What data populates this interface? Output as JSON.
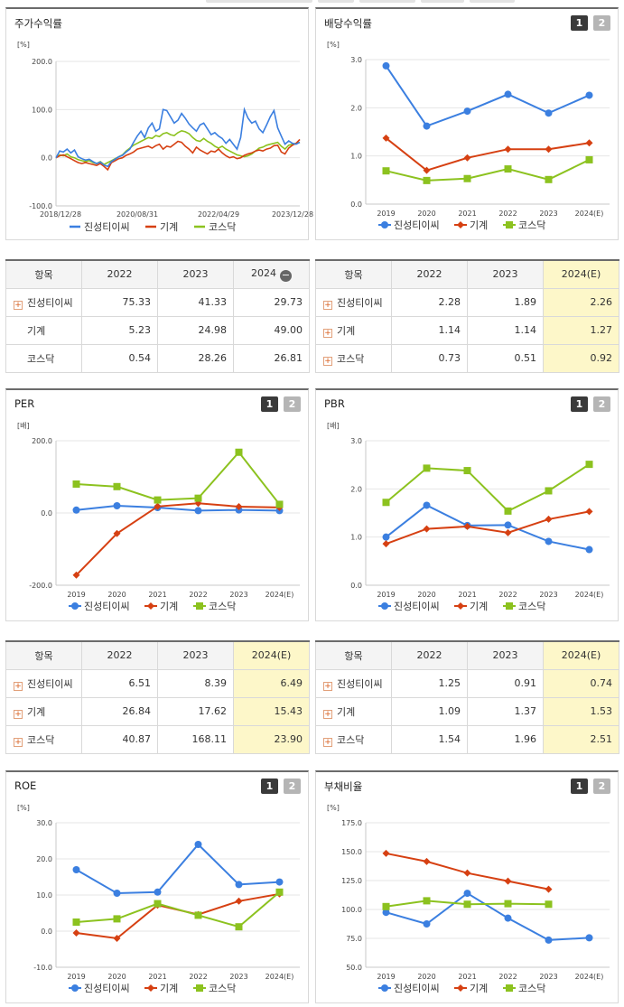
{
  "colors": {
    "series1": "#3b7fe0",
    "series2": "#d64012",
    "series3": "#8cc21f"
  },
  "legend": [
    "진성티이씨",
    "기계",
    "코스닥"
  ],
  "charts": {
    "price": {
      "title": "주가수익률",
      "unit": "[%]",
      "chart_data": {
        "type": "line",
        "title": "주가수익률",
        "ylabel": "[%]",
        "ylim": [
          -100,
          200
        ],
        "yticks": [
          "200.0",
          "100.0",
          "0.0",
          "-100.0"
        ],
        "xticks": [
          "2018/12/28",
          "2020/08/31",
          "2022/04/29",
          "2023/12/28"
        ],
        "x_start": "2018/12/28",
        "x_end": "2023/12/28",
        "series": [
          {
            "name": "진성티이씨",
            "values": [
              0,
              14,
              12,
              18,
              10,
              16,
              2,
              -2,
              -5,
              -3,
              -8,
              -12,
              -9,
              -15,
              -18,
              -8,
              -3,
              2,
              5,
              12,
              18,
              32,
              45,
              55,
              42,
              62,
              72,
              55,
              60,
              100,
              98,
              85,
              72,
              78,
              92,
              82,
              70,
              62,
              55,
              68,
              72,
              60,
              48,
              52,
              45,
              40,
              30,
              38,
              28,
              18,
              42,
              100,
              82,
              72,
              76,
              60,
              52,
              68,
              85,
              98,
              62,
              45,
              28,
              35,
              30,
              28,
              32
            ]
          },
          {
            "name": "기계",
            "values": [
              0,
              4,
              6,
              2,
              -2,
              -6,
              -10,
              -12,
              -10,
              -12,
              -14,
              -16,
              -12,
              -18,
              -25,
              -10,
              -6,
              -2,
              0,
              5,
              8,
              12,
              18,
              20,
              22,
              24,
              20,
              25,
              28,
              18,
              24,
              22,
              28,
              34,
              32,
              24,
              18,
              10,
              22,
              16,
              12,
              8,
              14,
              12,
              18,
              10,
              4,
              0,
              2,
              -2,
              0,
              5,
              8,
              10,
              14,
              16,
              14,
              18,
              20,
              25,
              26,
              12,
              8,
              20,
              26,
              30,
              38
            ]
          },
          {
            "name": "코스닥",
            "values": [
              0,
              6,
              4,
              8,
              2,
              0,
              -4,
              -6,
              -8,
              -6,
              -10,
              -12,
              -8,
              -14,
              -10,
              -6,
              -2,
              2,
              6,
              14,
              20,
              26,
              30,
              34,
              38,
              42,
              40,
              46,
              44,
              50,
              52,
              48,
              46,
              52,
              56,
              54,
              50,
              42,
              36,
              34,
              40,
              34,
              30,
              24,
              20,
              24,
              18,
              14,
              10,
              6,
              4,
              2,
              4,
              8,
              14,
              20,
              22,
              26,
              28,
              30,
              32,
              24,
              18,
              26,
              28,
              30,
              32
            ]
          }
        ]
      }
    },
    "dividend": {
      "title": "배당수익률",
      "unit": "[%]",
      "chart_data": {
        "type": "line",
        "title": "배당수익률",
        "ylabel": "[%]",
        "ylim": [
          0,
          3
        ],
        "yticks": [
          "3.0",
          "2.0",
          "1.0",
          "0.0"
        ],
        "categories": [
          "2019",
          "2020",
          "2021",
          "2022",
          "2023",
          "2024(E)"
        ],
        "series": [
          {
            "name": "진성티이씨",
            "values": [
              2.87,
              1.62,
              1.93,
              2.28,
              1.89,
              2.26
            ]
          },
          {
            "name": "기계",
            "values": [
              1.37,
              0.7,
              0.96,
              1.14,
              1.14,
              1.27
            ]
          },
          {
            "name": "코스닥",
            "values": [
              0.69,
              0.49,
              0.53,
              0.73,
              0.51,
              0.92
            ]
          }
        ]
      }
    },
    "per": {
      "title": "PER",
      "unit": "[배]",
      "chart_data": {
        "type": "line",
        "title": "PER",
        "ylabel": "[배]",
        "ylim": [
          -200,
          200
        ],
        "yticks": [
          "200.0",
          "0.0",
          "-200.0"
        ],
        "categories": [
          "2019",
          "2020",
          "2021",
          "2022",
          "2023",
          "2024(E)"
        ],
        "series": [
          {
            "name": "진성티이씨",
            "values": [
              8,
              20,
              15,
              6.51,
              8.39,
              6.49
            ]
          },
          {
            "name": "기계",
            "values": [
              -172,
              -57,
              18,
              26.84,
              17.62,
              15.43
            ]
          },
          {
            "name": "코스닥",
            "values": [
              80,
              73,
              36,
              40.87,
              168.11,
              23.9
            ]
          }
        ]
      }
    },
    "pbr": {
      "title": "PBR",
      "unit": "[배]",
      "chart_data": {
        "type": "line",
        "title": "PBR",
        "ylabel": "[배]",
        "ylim": [
          0,
          3
        ],
        "yticks": [
          "3.0",
          "2.0",
          "1.0",
          "0.0"
        ],
        "categories": [
          "2019",
          "2020",
          "2021",
          "2022",
          "2023",
          "2024(E)"
        ],
        "series": [
          {
            "name": "진성티이씨",
            "values": [
              1.0,
              1.66,
              1.24,
              1.25,
              0.91,
              0.74
            ]
          },
          {
            "name": "기계",
            "values": [
              0.86,
              1.17,
              1.22,
              1.09,
              1.37,
              1.53
            ]
          },
          {
            "name": "코스닥",
            "values": [
              1.72,
              2.43,
              2.38,
              1.54,
              1.96,
              2.51
            ]
          }
        ]
      }
    },
    "roe": {
      "title": "ROE",
      "unit": "[%]",
      "chart_data": {
        "type": "line",
        "title": "ROE",
        "ylabel": "[%]",
        "ylim": [
          -10,
          30
        ],
        "yticks": [
          "30.0",
          "20.0",
          "10.0",
          "0.0",
          "-10.0"
        ],
        "categories": [
          "2019",
          "2020",
          "2021",
          "2022",
          "2023",
          "2024(E)"
        ],
        "series": [
          {
            "name": "진성티이씨",
            "values": [
              17.0,
              10.5,
              10.8,
              24.0,
              12.9,
              13.6
            ]
          },
          {
            "name": "기계",
            "values": [
              -0.5,
              -2.0,
              7.2,
              4.6,
              8.3,
              10.3
            ]
          },
          {
            "name": "코스닥",
            "values": [
              2.5,
              3.4,
              7.6,
              4.4,
              1.2,
              10.8
            ]
          }
        ]
      }
    },
    "debt": {
      "title": "부채비율",
      "unit": "[%]",
      "chart_data": {
        "type": "line",
        "title": "부채비율",
        "ylabel": "[%]",
        "ylim": [
          50,
          175
        ],
        "yticks": [
          "175.0",
          "150.0",
          "125.0",
          "100.0",
          "75.0",
          "50.0"
        ],
        "categories": [
          "2019",
          "2020",
          "2021",
          "2022",
          "2023",
          "2024(E)"
        ],
        "series": [
          {
            "name": "진성티이씨",
            "values": [
              97.5,
              87.5,
              114.0,
              92.5,
              73.5,
              75.5
            ]
          },
          {
            "name": "기계",
            "values": [
              148.5,
              141.5,
              131.5,
              124.5,
              117.5,
              null
            ]
          },
          {
            "name": "코스닥",
            "values": [
              102.5,
              107.5,
              104.5,
              105.0,
              104.5,
              null
            ]
          }
        ]
      }
    }
  },
  "tables": {
    "price": {
      "header": [
        "항목",
        "2022",
        "2023",
        "2024"
      ],
      "rows": [
        {
          "name": "진성티이씨",
          "plus": true,
          "values": [
            "75.33",
            "41.33",
            "29.73"
          ]
        },
        {
          "name": "기계",
          "plus": false,
          "values": [
            "5.23",
            "24.98",
            "49.00"
          ]
        },
        {
          "name": "코스닥",
          "plus": false,
          "values": [
            "0.54",
            "28.26",
            "26.81"
          ]
        }
      ]
    },
    "dividend": {
      "header": [
        "항목",
        "2022",
        "2023",
        "2024(E)"
      ],
      "rows": [
        {
          "name": "진성티이씨",
          "plus": true,
          "values": [
            "2.28",
            "1.89",
            "2.26"
          ]
        },
        {
          "name": "기계",
          "plus": true,
          "values": [
            "1.14",
            "1.14",
            "1.27"
          ]
        },
        {
          "name": "코스닥",
          "plus": true,
          "values": [
            "0.73",
            "0.51",
            "0.92"
          ]
        }
      ]
    },
    "per": {
      "header": [
        "항목",
        "2022",
        "2023",
        "2024(E)"
      ],
      "rows": [
        {
          "name": "진성티이씨",
          "plus": true,
          "values": [
            "6.51",
            "8.39",
            "6.49"
          ]
        },
        {
          "name": "기계",
          "plus": true,
          "values": [
            "26.84",
            "17.62",
            "15.43"
          ]
        },
        {
          "name": "코스닥",
          "plus": true,
          "values": [
            "40.87",
            "168.11",
            "23.90"
          ]
        }
      ]
    },
    "pbr": {
      "header": [
        "항목",
        "2022",
        "2023",
        "2024(E)"
      ],
      "rows": [
        {
          "name": "진성티이씨",
          "plus": true,
          "values": [
            "1.25",
            "0.91",
            "0.74"
          ]
        },
        {
          "name": "기계",
          "plus": true,
          "values": [
            "1.09",
            "1.37",
            "1.53"
          ]
        },
        {
          "name": "코스닥",
          "plus": true,
          "values": [
            "1.54",
            "1.96",
            "2.51"
          ]
        }
      ]
    }
  }
}
